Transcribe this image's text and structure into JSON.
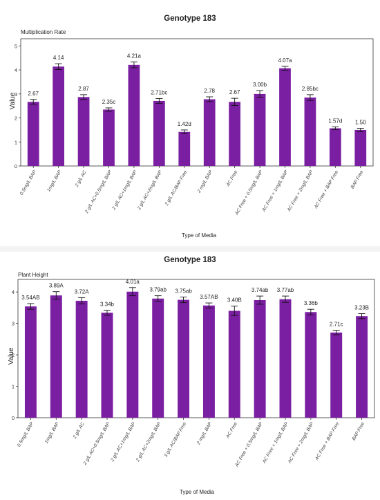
{
  "chart_data": [
    {
      "type": "bar",
      "title": "Genotype 183",
      "subtitle": "Multiplication Rate",
      "xlabel": "Type of Media",
      "ylabel": "Value",
      "ylim": [
        0,
        5.3
      ],
      "yticks": [
        0,
        1,
        2,
        3,
        4,
        5
      ],
      "grid": false,
      "bar_color": "#7b1fa2",
      "categories": [
        "0.5mg/L BAP",
        "1mg/L BAP",
        "2 g/L AC",
        "2 g/L AC+0.5mg/L BAP",
        "2 g/L AC+1mg/L BAP",
        "2 g/L AC+2mg/L BAP",
        "2 g/L AC/BAP Free",
        "2 mg/L BAP",
        "AC Free",
        "AC Free + 0.5mg/L BAP",
        "AC Free + 1mg/L BAP",
        "AC Free + 2mg/L BAP",
        "AC Free + BAP Free",
        "BAP Free"
      ],
      "values": [
        2.67,
        4.14,
        2.87,
        2.35,
        4.21,
        2.71,
        1.42,
        2.78,
        2.67,
        3.0,
        4.07,
        2.85,
        1.57,
        1.5
      ],
      "errors": [
        0.1,
        0.12,
        0.1,
        0.07,
        0.12,
        0.1,
        0.08,
        0.1,
        0.15,
        0.14,
        0.08,
        0.12,
        0.06,
        0.07
      ],
      "data_labels": [
        "2.67",
        "4.14",
        "2.87",
        "2.35c",
        "4.21a",
        "2.71bc",
        "1.42d",
        "2.78",
        "2.67",
        "3.00b",
        "4.07a",
        "2.85bc",
        "1.57d",
        "1.50"
      ]
    },
    {
      "type": "bar",
      "title": "Genotype 183",
      "subtitle": "Plant Height",
      "xlabel": "Type of Media",
      "ylabel": "Value",
      "ylim": [
        0,
        4.4
      ],
      "yticks": [
        0,
        1,
        2,
        3,
        4
      ],
      "grid": false,
      "bar_color": "#7b1fa2",
      "categories": [
        "0.5mg/L BAP",
        "1mg/L BAP",
        "2 g/L AC",
        "2 g/L AC+0.5mg/L BAP",
        "2 g/L AC+1mg/L BAP",
        "2 g/L AC+2mg/L BAP",
        "3 g/L AC/BAP Free",
        "2 mg/L BAP",
        "AC Free",
        "AC Free + 0.5mg/L BAP",
        "AC Free + 1mg/L BAP",
        "AC Free + 2mg/L BAP",
        "AC Free + BAP Free",
        "BAP Free"
      ],
      "values": [
        3.54,
        3.89,
        3.72,
        3.34,
        4.01,
        3.79,
        3.75,
        3.57,
        3.4,
        3.74,
        3.77,
        3.36,
        2.71,
        3.23
      ],
      "errors": [
        0.09,
        0.12,
        0.1,
        0.08,
        0.13,
        0.09,
        0.09,
        0.08,
        0.15,
        0.13,
        0.1,
        0.09,
        0.07,
        0.08
      ],
      "data_labels": [
        "3.54AB",
        "3.89A",
        "3.72A",
        "3.34b",
        "4.01a",
        "3.79ab",
        "3.75ab",
        "3.57AB",
        "3.40B",
        "3.74ab",
        "3.77ab",
        "3.36b",
        "2.71c",
        "3.23B"
      ]
    }
  ]
}
